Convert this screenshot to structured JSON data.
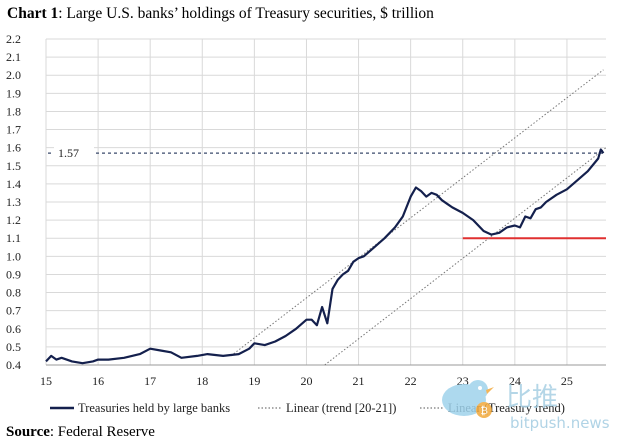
{
  "title_prefix": "Chart 1",
  "title_text": ": Large U.S. banks’ holdings of Treasury securities, $ trillion",
  "source_prefix": "Source",
  "source_text": ": Federal Reserve",
  "watermark": {
    "cn": "比推",
    "url": "bitpush.news"
  },
  "colors": {
    "series": "#14204d",
    "red_line": "#e03030",
    "grid": "#d9d9d9",
    "trend": "#777777"
  },
  "chart_data": {
    "type": "line",
    "title": "Large U.S. banks’ holdings of Treasury securities, $ trillion",
    "xlabel": "",
    "ylabel": "",
    "xlim": [
      15.0,
      25.75
    ],
    "ylim": [
      0.4,
      2.2
    ],
    "x_ticks": [
      "15",
      "16",
      "17",
      "18",
      "19",
      "20",
      "21",
      "22",
      "23",
      "24",
      "25"
    ],
    "y_ticks": [
      "0.4",
      "0.5",
      "0.6",
      "0.7",
      "0.8",
      "0.9",
      "1.0",
      "1.1",
      "1.2",
      "1.3",
      "1.4",
      "1.5",
      "1.6",
      "1.7",
      "1.8",
      "1.9",
      "2.0",
      "2.1",
      "2.2"
    ],
    "grid": true,
    "legend_position": "bottom",
    "annotations": [
      {
        "label": "1.57",
        "y": 1.57,
        "style": "dashed horizontal line"
      },
      {
        "label": "",
        "y": 1.1,
        "x_from": 23.0,
        "x_to": 25.75,
        "style": "red horizontal line"
      }
    ],
    "series": [
      {
        "name": "Treasuries held by large banks",
        "x": [
          15.0,
          15.1,
          15.2,
          15.3,
          15.5,
          15.7,
          15.9,
          16.0,
          16.2,
          16.5,
          16.8,
          17.0,
          17.2,
          17.4,
          17.6,
          17.9,
          18.1,
          18.4,
          18.7,
          18.9,
          19.0,
          19.2,
          19.4,
          19.6,
          19.8,
          20.0,
          20.1,
          20.2,
          20.3,
          20.4,
          20.5,
          20.6,
          20.7,
          20.8,
          20.9,
          21.0,
          21.1,
          21.3,
          21.5,
          21.7,
          21.85,
          22.0,
          22.1,
          22.2,
          22.3,
          22.4,
          22.5,
          22.6,
          22.7,
          22.8,
          23.0,
          23.2,
          23.4,
          23.55,
          23.7,
          23.85,
          24.0,
          24.1,
          24.2,
          24.3,
          24.4,
          24.5,
          24.6,
          24.8,
          25.0,
          25.2,
          25.4,
          25.6,
          25.65,
          25.7
        ],
        "y": [
          0.42,
          0.45,
          0.43,
          0.44,
          0.42,
          0.41,
          0.42,
          0.43,
          0.43,
          0.44,
          0.46,
          0.49,
          0.48,
          0.47,
          0.44,
          0.45,
          0.46,
          0.45,
          0.46,
          0.49,
          0.52,
          0.51,
          0.53,
          0.56,
          0.6,
          0.65,
          0.65,
          0.62,
          0.72,
          0.63,
          0.82,
          0.87,
          0.9,
          0.92,
          0.97,
          0.99,
          1.0,
          1.05,
          1.1,
          1.16,
          1.22,
          1.33,
          1.38,
          1.36,
          1.33,
          1.35,
          1.34,
          1.31,
          1.29,
          1.27,
          1.24,
          1.2,
          1.14,
          1.12,
          1.13,
          1.16,
          1.17,
          1.16,
          1.22,
          1.21,
          1.26,
          1.27,
          1.3,
          1.34,
          1.37,
          1.42,
          1.47,
          1.54,
          1.59,
          1.57
        ]
      },
      {
        "name": "Linear (trend [20-21])",
        "x": [
          18.55,
          25.7
        ],
        "y": [
          0.45,
          2.03
        ]
      },
      {
        "name": "Linear (Treasury trend)",
        "x": [
          20.35,
          25.75
        ],
        "y": [
          0.4,
          1.6
        ]
      }
    ]
  }
}
